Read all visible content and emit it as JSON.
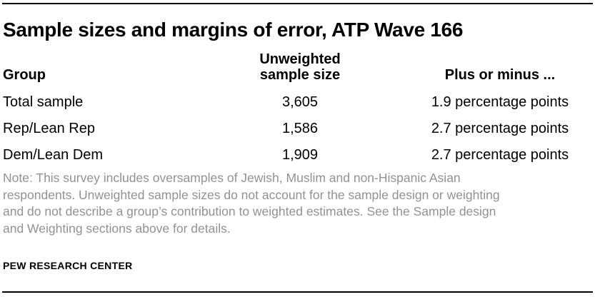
{
  "title": "Sample sizes and margins of error, ATP Wave 166",
  "table": {
    "headers": {
      "group": "Group",
      "sample_size_line1": "Unweighted",
      "sample_size_line2": "sample size",
      "margin": "Plus or minus ..."
    },
    "rows": [
      {
        "group": "Total sample",
        "sample_size": "3,605",
        "margin": "1.9 percentage points"
      },
      {
        "group": "Rep/Lean Rep",
        "sample_size": "1,586",
        "margin": "2.7 percentage points"
      },
      {
        "group": "Dem/Lean Dem",
        "sample_size": "1,909",
        "margin": "2.7 percentage points"
      }
    ]
  },
  "note": {
    "lines": [
      "Note: This survey includes oversamples of Jewish, Muslim and non-Hispanic Asian",
      "respondents. Unweighted sample sizes do not account for the sample design or weighting",
      "and do not describe a group’s contribution to weighted estimates. See the Sample design",
      "and Weighting sections above for details."
    ]
  },
  "source": "PEW RESEARCH CENTER",
  "colors": {
    "text": "#000000",
    "note_gray": "#8f9296",
    "rule": "#000000",
    "background": "#ffffff"
  },
  "chart_data": {
    "type": "table",
    "title": "Sample sizes and margins of error, ATP Wave 166",
    "columns": [
      "Group",
      "Unweighted sample size",
      "Plus or minus ..."
    ],
    "rows": [
      {
        "group": "Total sample",
        "unweighted_sample_size": 3605,
        "margin_of_error_pct_points": 1.9
      },
      {
        "group": "Rep/Lean Rep",
        "unweighted_sample_size": 1586,
        "margin_of_error_pct_points": 2.7
      },
      {
        "group": "Dem/Lean Dem",
        "unweighted_sample_size": 1909,
        "margin_of_error_pct_points": 2.7
      }
    ],
    "note": "Note: This survey includes oversamples of Jewish, Muslim and non-Hispanic Asian respondents. Unweighted sample sizes do not account for the sample design or weighting and do not describe a group’s contribution to weighted estimates. See the Sample design and Weighting sections above for details.",
    "source": "PEW RESEARCH CENTER"
  }
}
